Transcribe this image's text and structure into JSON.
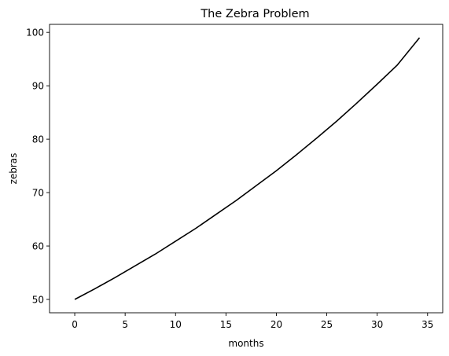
{
  "chart_data": {
    "type": "line",
    "title": "The Zebra Problem",
    "xlabel": "months",
    "ylabel": "zebras",
    "xlim": [
      -2.5,
      36.5
    ],
    "ylim": [
      47.5,
      101.5
    ],
    "xticks": [
      0,
      5,
      10,
      15,
      20,
      25,
      30,
      35
    ],
    "yticks": [
      50,
      60,
      70,
      80,
      90,
      100
    ],
    "grid": false,
    "line_color": "#000000",
    "series": [
      {
        "x": [
          0,
          2,
          4,
          6,
          8,
          10,
          12,
          14,
          16,
          18,
          20,
          22,
          24,
          26,
          28,
          30,
          32,
          34.2
        ],
        "y": [
          50.0,
          52.0,
          54.1,
          56.3,
          58.5,
          60.9,
          63.3,
          65.9,
          68.5,
          71.3,
          74.1,
          77.1,
          80.2,
          83.4,
          86.8,
          90.3,
          93.9,
          99.0
        ]
      }
    ]
  }
}
